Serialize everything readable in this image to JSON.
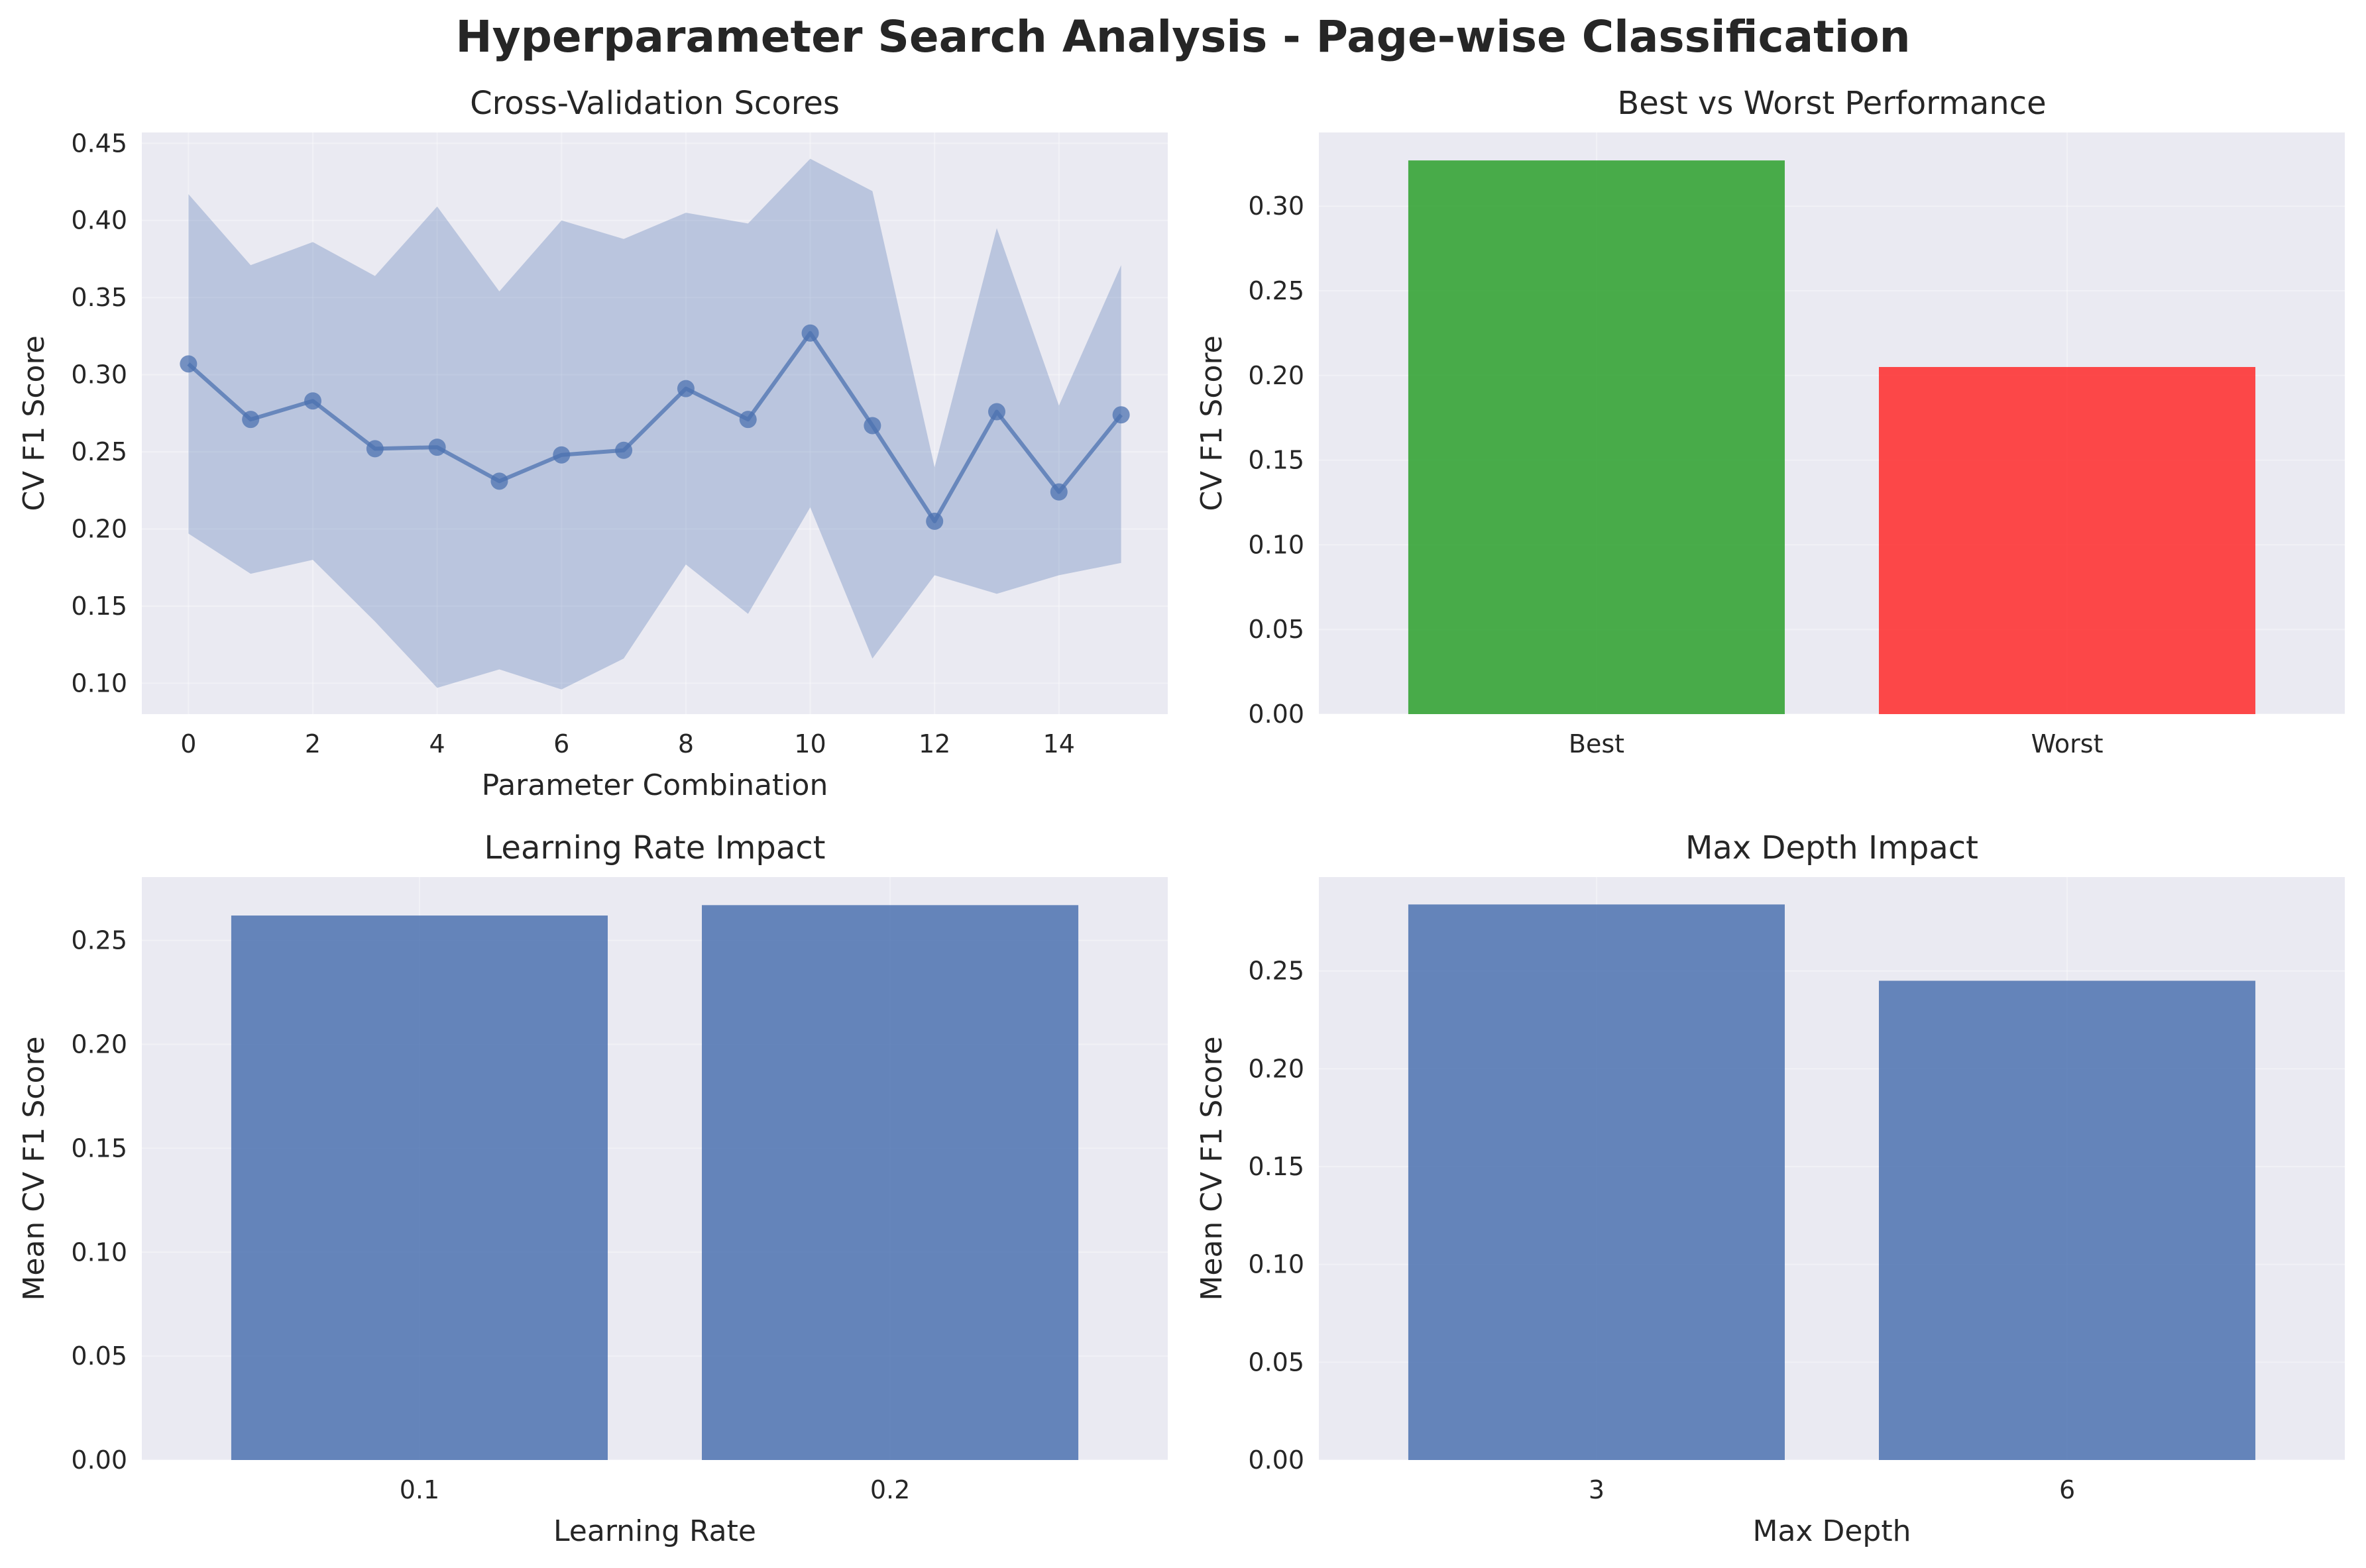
{
  "figure": {
    "title": "Hyperparameter Search Analysis - Page-wise Classification",
    "colors": {
      "background": "#eaeaf2",
      "blue": "#4c72b0",
      "green": "#2ca02c",
      "red": "#ff2a2a"
    }
  },
  "chart_data": [
    {
      "type": "line",
      "title": "Cross-Validation Scores",
      "xlabel": "Parameter Combination",
      "ylabel": "CV F1 Score",
      "x": [
        0,
        1,
        2,
        3,
        4,
        5,
        6,
        7,
        8,
        9,
        10,
        11,
        12,
        13,
        14,
        15
      ],
      "mean": [
        0.307,
        0.271,
        0.283,
        0.252,
        0.253,
        0.231,
        0.248,
        0.251,
        0.291,
        0.271,
        0.327,
        0.267,
        0.205,
        0.276,
        0.224,
        0.274
      ],
      "upper": [
        0.417,
        0.371,
        0.386,
        0.364,
        0.409,
        0.354,
        0.4,
        0.388,
        0.405,
        0.398,
        0.44,
        0.419,
        0.24,
        0.395,
        0.28,
        0.371
      ],
      "lower": [
        0.197,
        0.171,
        0.18,
        0.14,
        0.097,
        0.109,
        0.096,
        0.116,
        0.177,
        0.145,
        0.214,
        0.116,
        0.17,
        0.158,
        0.17,
        0.178
      ],
      "xlim": [
        -0.75,
        15.75
      ],
      "ylim": [
        0.08,
        0.457
      ],
      "xticks": [
        0,
        2,
        4,
        6,
        8,
        10,
        12,
        14
      ],
      "yticks": [
        0.1,
        0.15,
        0.2,
        0.25,
        0.3,
        0.35,
        0.4,
        0.45
      ],
      "yticklabels": [
        "0.10",
        "0.15",
        "0.20",
        "0.25",
        "0.30",
        "0.35",
        "0.40",
        "0.45"
      ],
      "grid": true
    },
    {
      "type": "bar",
      "title": "Best vs Worst Performance",
      "xlabel": "",
      "ylabel": "CV F1 Score",
      "categories": [
        "Best",
        "Worst"
      ],
      "values": [
        0.327,
        0.205
      ],
      "bar_colors": [
        "#2ca02c",
        "#ff2a2a"
      ],
      "ylim": [
        0,
        0.3435
      ],
      "yticks": [
        0.0,
        0.05,
        0.1,
        0.15,
        0.2,
        0.25,
        0.3
      ],
      "yticklabels": [
        "0.00",
        "0.05",
        "0.10",
        "0.15",
        "0.20",
        "0.25",
        "0.30"
      ],
      "grid": true
    },
    {
      "type": "bar",
      "title": "Learning Rate Impact",
      "xlabel": "Learning Rate",
      "ylabel": "Mean CV F1 Score",
      "categories": [
        "0.1",
        "0.2"
      ],
      "values": [
        0.262,
        0.267
      ],
      "bar_colors": [
        "#4c72b0",
        "#4c72b0"
      ],
      "ylim": [
        0,
        0.2805
      ],
      "yticks": [
        0.0,
        0.05,
        0.1,
        0.15,
        0.2,
        0.25
      ],
      "yticklabels": [
        "0.00",
        "0.05",
        "0.10",
        "0.15",
        "0.20",
        "0.25"
      ],
      "grid": true
    },
    {
      "type": "bar",
      "title": "Max Depth Impact",
      "xlabel": "Max Depth",
      "ylabel": "Mean CV F1 Score",
      "categories": [
        "3",
        "6"
      ],
      "values": [
        0.284,
        0.245
      ],
      "bar_colors": [
        "#4c72b0",
        "#4c72b0"
      ],
      "ylim": [
        0,
        0.298
      ],
      "yticks": [
        0.0,
        0.05,
        0.1,
        0.15,
        0.2,
        0.25
      ],
      "yticklabels": [
        "0.00",
        "0.05",
        "0.10",
        "0.15",
        "0.20",
        "0.25"
      ],
      "grid": true
    }
  ]
}
